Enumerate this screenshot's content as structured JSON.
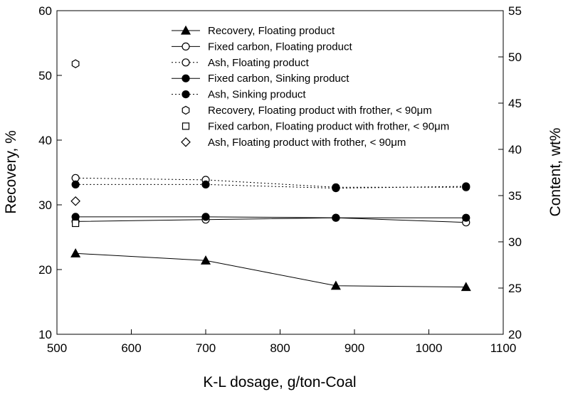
{
  "chart_data": {
    "type": "line",
    "xlabel": "K-L dosage, g/ton-Coal",
    "ylabel_left": "Recovery, %",
    "ylabel_right": "Content, wt%",
    "xlim": [
      500,
      1100
    ],
    "ylim_left": [
      10,
      60
    ],
    "ylim_right": [
      20,
      55
    ],
    "x_ticks": [
      500,
      600,
      700,
      800,
      900,
      1000,
      1100
    ],
    "y_left_ticks": [
      10,
      20,
      30,
      40,
      50,
      60
    ],
    "y_right_ticks": [
      20,
      25,
      30,
      35,
      40,
      45,
      50,
      55
    ],
    "grid": false,
    "legend_position": "top-center",
    "series": [
      {
        "name": "Recovery, Floating product",
        "axis": "left",
        "marker": "triangle-filled",
        "line": "solid",
        "x": [
          525,
          700,
          875,
          1050
        ],
        "values": [
          22.5,
          21.4,
          17.5,
          17.3
        ]
      },
      {
        "name": "Fixed carbon, Floating product",
        "axis": "right",
        "marker": "circle-open",
        "line": "solid",
        "x": [
          525,
          700,
          875,
          1050
        ],
        "values": [
          32.2,
          32.4,
          32.6,
          32.1
        ]
      },
      {
        "name": "Ash, Floating product",
        "axis": "right",
        "marker": "circle-open",
        "line": "dotted",
        "x": [
          525,
          700,
          875,
          1050
        ],
        "values": [
          36.9,
          36.7,
          35.9,
          35.9
        ]
      },
      {
        "name": "Fixed carbon, Sinking product",
        "axis": "right",
        "marker": "circle-filled",
        "line": "solid",
        "x": [
          525,
          700,
          875,
          1050
        ],
        "values": [
          32.7,
          32.7,
          32.6,
          32.6
        ]
      },
      {
        "name": "Ash, Sinking product",
        "axis": "right",
        "marker": "circle-filled",
        "line": "dotted",
        "x": [
          525,
          700,
          875,
          1050
        ],
        "values": [
          36.2,
          36.2,
          35.8,
          36.0
        ]
      },
      {
        "name": "Recovery, Floating product with frother, < 90μm",
        "axis": "left",
        "marker": "hexagon-open",
        "line": "none",
        "x": [
          525
        ],
        "values": [
          51.8
        ]
      },
      {
        "name": "Fixed carbon, Floating product with frother, < 90μm",
        "axis": "right",
        "marker": "square-open",
        "line": "none",
        "x": [
          525
        ],
        "values": [
          32.0
        ]
      },
      {
        "name": "Ash, Floating product with frother, < 90μm",
        "axis": "right",
        "marker": "diamond-open",
        "line": "none",
        "x": [
          525
        ],
        "values": [
          34.4
        ]
      }
    ]
  }
}
